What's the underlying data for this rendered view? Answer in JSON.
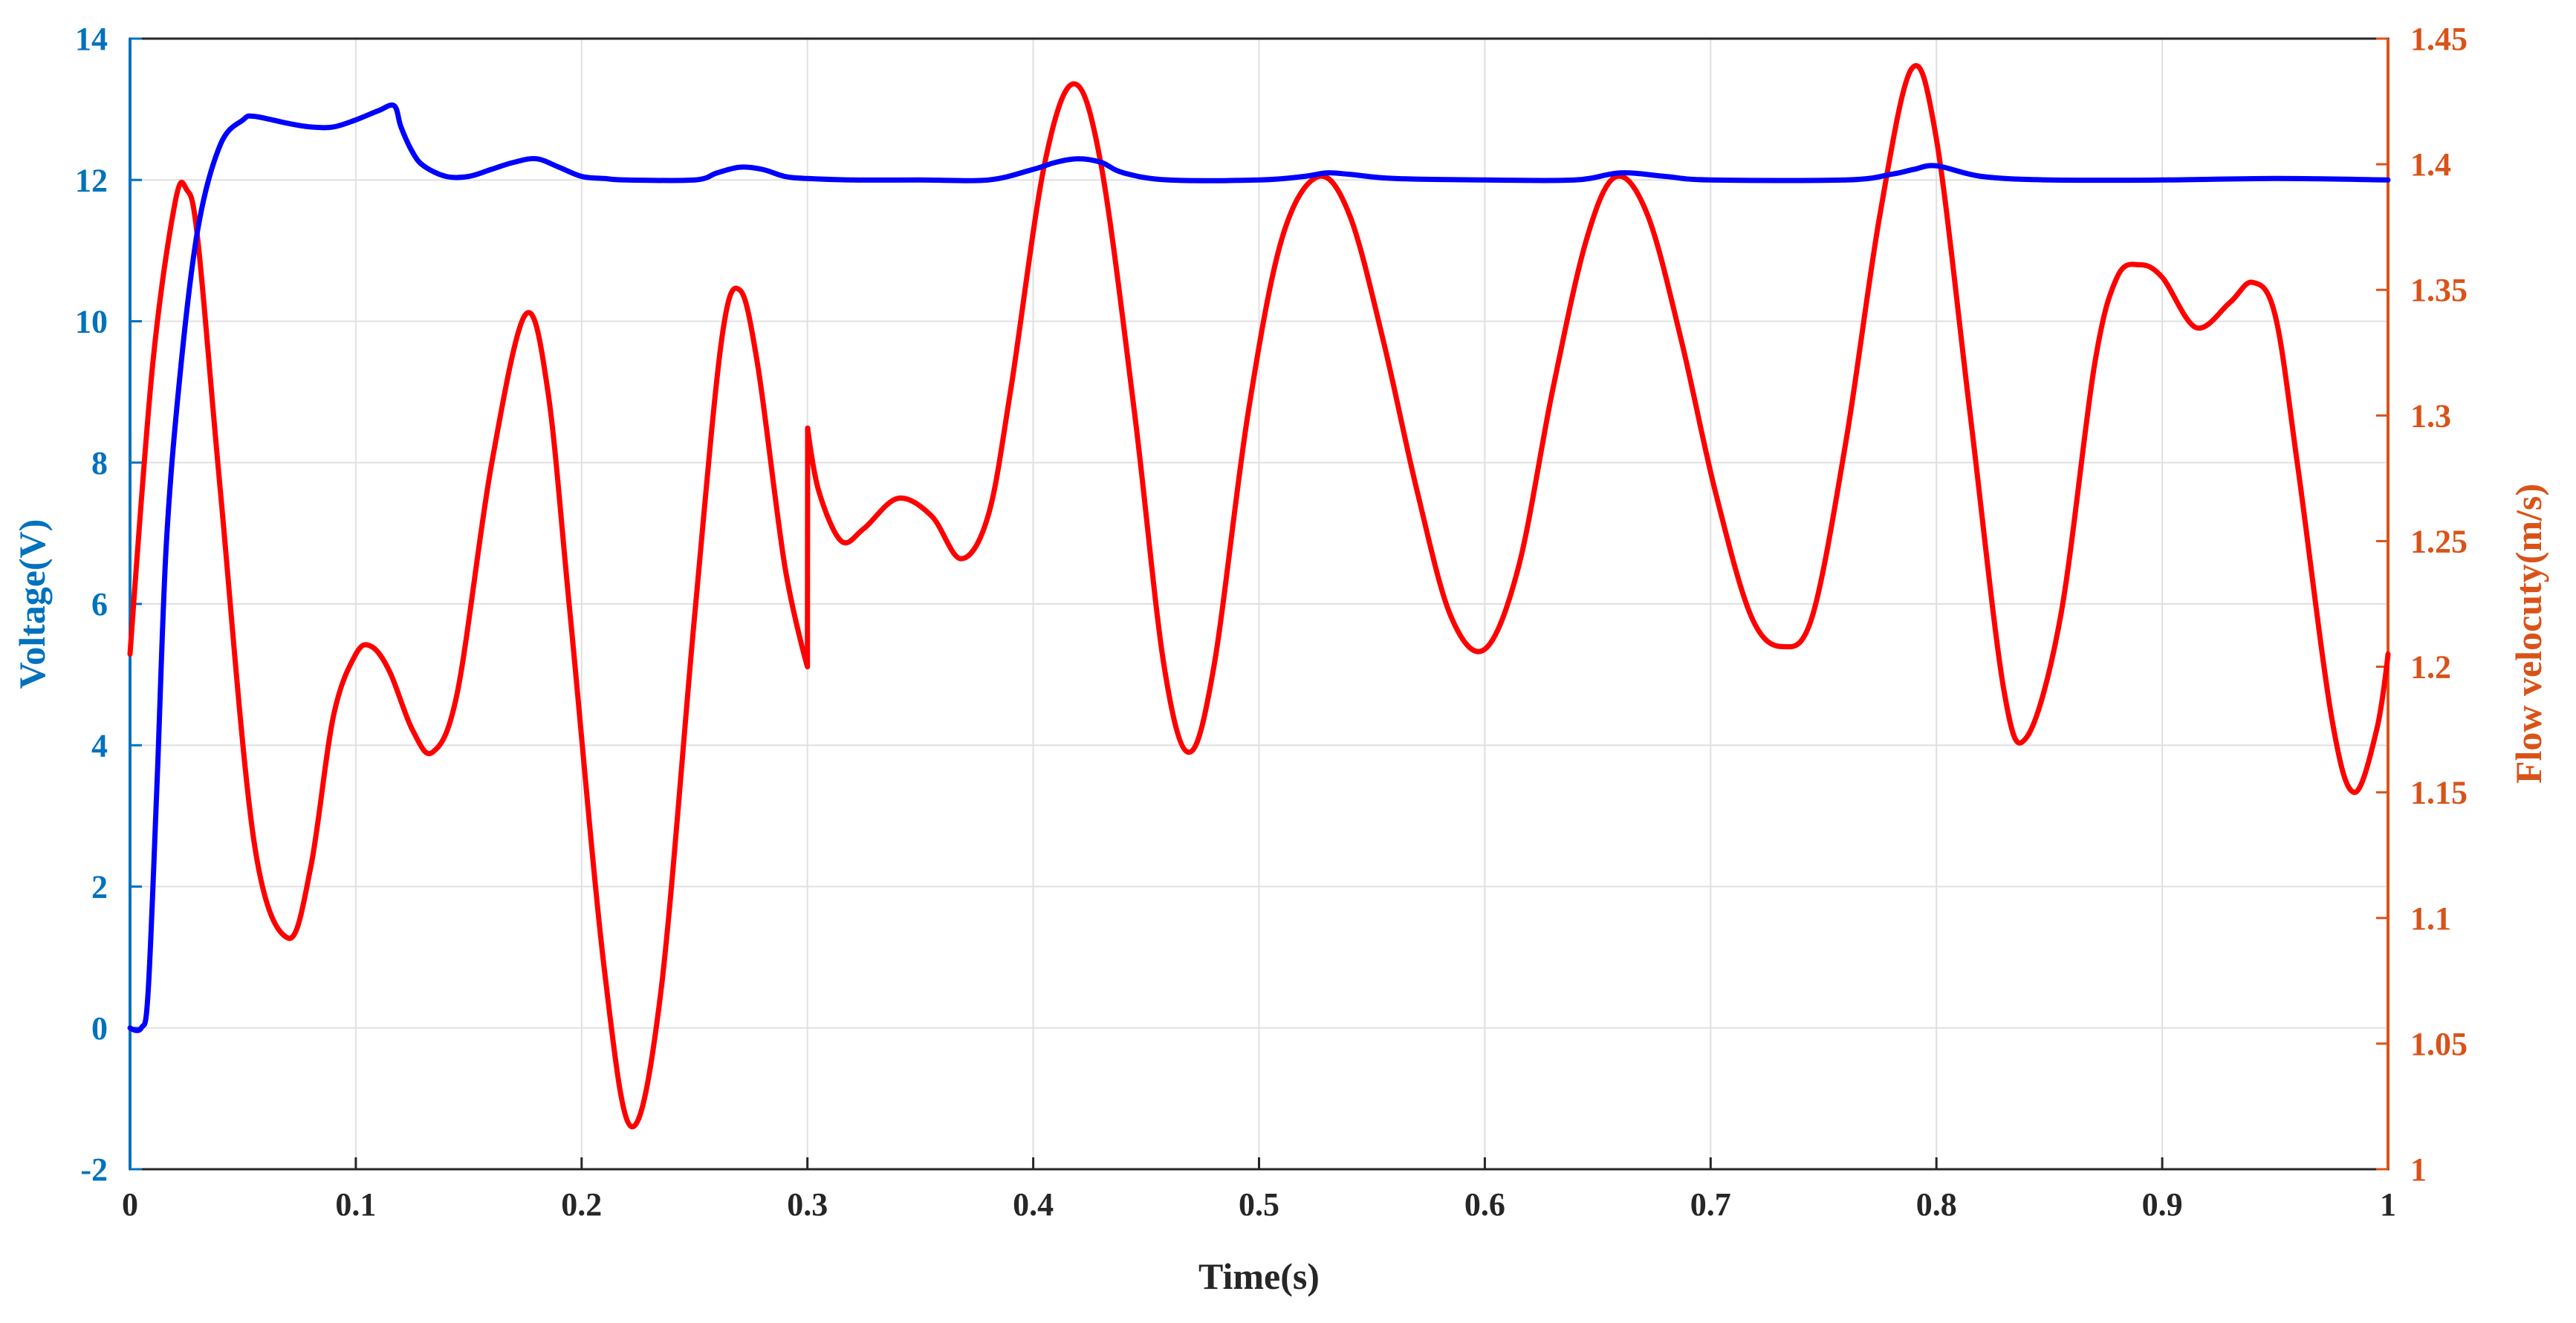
{
  "chart_data": {
    "type": "line",
    "title": "",
    "xlabel": "Time(s)",
    "ylabel_left": "Voltage(V)",
    "ylabel_right": "Flow velocuty(m/s)",
    "xlim": [
      0,
      1
    ],
    "ylim_left": [
      -2,
      14
    ],
    "ylim_right": [
      1,
      1.45
    ],
    "grid": true,
    "legend": "none",
    "colors": {
      "voltage_series": "#0000ff",
      "flow_series": "#ff0000",
      "left_axis": "#0072bd",
      "right_axis": "#d95319",
      "x_axis": "#262626",
      "grid": "#e0e0e0"
    },
    "x_ticks": [
      "0",
      "0.1",
      "0.2",
      "0.3",
      "0.4",
      "0.5",
      "0.6",
      "0.7",
      "0.8",
      "0.9",
      "1"
    ],
    "x_tick_values": [
      0,
      0.1,
      0.2,
      0.3,
      0.4,
      0.5,
      0.6,
      0.7,
      0.8,
      0.9,
      1
    ],
    "y_left_ticks": [
      "-2",
      "0",
      "2",
      "4",
      "6",
      "8",
      "10",
      "12",
      "14"
    ],
    "y_left_tick_values": [
      -2,
      0,
      2,
      4,
      6,
      8,
      10,
      12,
      14
    ],
    "y_right_ticks": [
      "1",
      "1.05",
      "1.1",
      "1.15",
      "1.2",
      "1.25",
      "1.3",
      "1.35",
      "1.4",
      "1.45"
    ],
    "y_right_tick_values": [
      1,
      1.05,
      1.1,
      1.15,
      1.2,
      1.25,
      1.3,
      1.35,
      1.4,
      1.45
    ],
    "series": [
      {
        "axis": "left",
        "x": [
          0,
          0.005,
          0.008,
          0.012,
          0.016,
          0.022,
          0.03,
          0.04,
          0.05,
          0.055,
          0.07,
          0.08,
          0.09,
          0.1,
          0.11,
          0.117,
          0.12,
          0.125,
          0.13,
          0.14,
          0.15,
          0.16,
          0.17,
          0.18,
          0.19,
          0.2,
          0.21,
          0.22,
          0.25,
          0.26,
          0.27,
          0.28,
          0.29,
          0.3,
          0.32,
          0.35,
          0.38,
          0.4,
          0.41,
          0.42,
          0.43,
          0.44,
          0.46,
          0.5,
          0.52,
          0.53,
          0.54,
          0.56,
          0.6,
          0.64,
          0.66,
          0.68,
          0.7,
          0.76,
          0.78,
          0.79,
          0.8,
          0.82,
          0.85,
          0.9,
          0.95,
          1.0
        ],
        "y": [
          0,
          0,
          0.5,
          3.5,
          6.8,
          9.2,
          11.3,
          12.5,
          12.85,
          12.9,
          12.8,
          12.75,
          12.75,
          12.85,
          12.98,
          13.05,
          12.75,
          12.4,
          12.2,
          12.05,
          12.05,
          12.15,
          12.25,
          12.3,
          12.18,
          12.05,
          12.02,
          12.0,
          12.0,
          12.1,
          12.18,
          12.15,
          12.05,
          12.02,
          12.0,
          12.0,
          12.0,
          12.15,
          12.25,
          12.3,
          12.25,
          12.1,
          12.0,
          12.0,
          12.05,
          12.1,
          12.08,
          12.02,
          12.0,
          12.0,
          12.1,
          12.05,
          12.0,
          12.0,
          12.08,
          12.15,
          12.2,
          12.05,
          12.0,
          12.0,
          12.02,
          12.0
        ]
      },
      {
        "axis": "right",
        "x": [
          0,
          0.01,
          0.02,
          0.025,
          0.03,
          0.04,
          0.055,
          0.07,
          0.08,
          0.09,
          0.1,
          0.107,
          0.115,
          0.125,
          0.134,
          0.145,
          0.16,
          0.175,
          0.185,
          0.195,
          0.21,
          0.222,
          0.235,
          0.25,
          0.262,
          0.27,
          0.278,
          0.29,
          0.3,
          0.3001,
          0.305,
          0.315,
          0.325,
          0.34,
          0.355,
          0.368,
          0.38,
          0.39,
          0.405,
          0.418,
          0.43,
          0.445,
          0.458,
          0.469,
          0.48,
          0.495,
          0.51,
          0.526,
          0.54,
          0.555,
          0.57,
          0.585,
          0.6,
          0.615,
          0.63,
          0.645,
          0.658,
          0.672,
          0.687,
          0.702,
          0.718,
          0.732,
          0.745,
          0.76,
          0.775,
          0.789,
          0.8,
          0.815,
          0.83,
          0.84,
          0.855,
          0.87,
          0.88,
          0.89,
          0.9,
          0.915,
          0.93,
          0.94,
          0.95,
          0.96,
          0.975,
          0.985,
          0.995,
          1.0
        ],
        "y": [
          1.205,
          1.32,
          1.385,
          1.39,
          1.37,
          1.27,
          1.13,
          1.092,
          1.12,
          1.18,
          1.205,
          1.208,
          1.198,
          1.175,
          1.166,
          1.19,
          1.28,
          1.34,
          1.31,
          1.22,
          1.08,
          1.017,
          1.07,
          1.22,
          1.33,
          1.35,
          1.32,
          1.24,
          1.2,
          1.295,
          1.27,
          1.25,
          1.255,
          1.267,
          1.26,
          1.243,
          1.26,
          1.31,
          1.4,
          1.432,
          1.4,
          1.3,
          1.2,
          1.166,
          1.2,
          1.3,
          1.37,
          1.395,
          1.38,
          1.33,
          1.27,
          1.22,
          1.207,
          1.24,
          1.31,
          1.37,
          1.395,
          1.38,
          1.33,
          1.27,
          1.22,
          1.208,
          1.22,
          1.29,
          1.38,
          1.438,
          1.41,
          1.3,
          1.19,
          1.172,
          1.22,
          1.32,
          1.355,
          1.36,
          1.355,
          1.335,
          1.345,
          1.353,
          1.34,
          1.28,
          1.18,
          1.15,
          1.175,
          1.205
        ]
      }
    ]
  }
}
